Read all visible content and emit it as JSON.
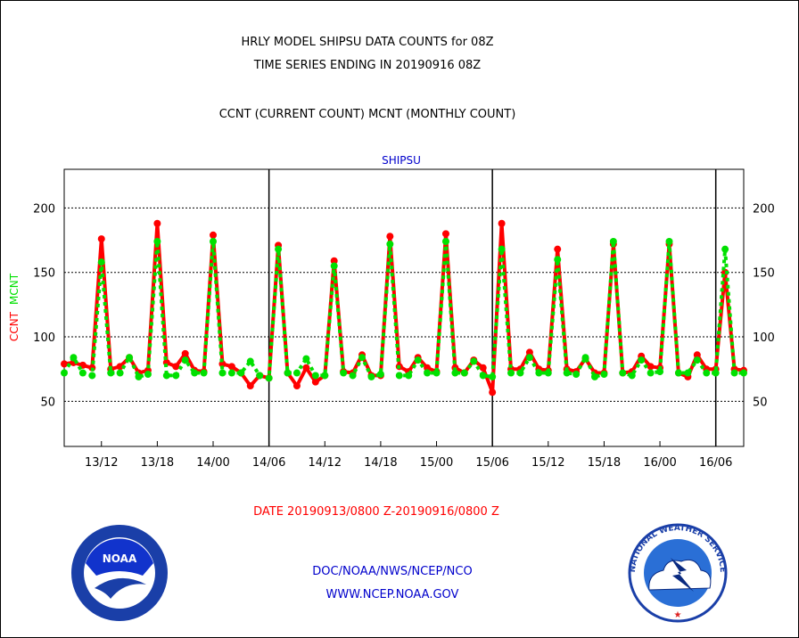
{
  "header": {
    "title_line1": "HRLY MODEL SHIPSU DATA COUNTS for 08Z",
    "title_line2": "TIME SERIES ENDING IN 20190916 08Z",
    "subtitle": "CCNT (CURRENT COUNT) MCNT (MONTHLY COUNT)"
  },
  "footer": {
    "date_range": "DATE 20190913/0800 Z-20190916/0800 Z",
    "org_line": "DOC/NOAA/NWS/NCEP/NCO",
    "url_line": "WWW.NCEP.NOAA.GOV"
  },
  "logos": {
    "left": "NOAA",
    "right": "NATIONAL WEATHER SERVICE"
  },
  "colors": {
    "ccnt": "#ff0000",
    "mcnt": "#00e000",
    "text_blue": "#0000cc",
    "grid": "#000000"
  },
  "chart_data": {
    "type": "line",
    "title": "SHIPSU",
    "ylabel_parts": [
      "CCNT",
      "MCNT"
    ],
    "ylim": [
      15,
      230
    ],
    "yticks": [
      50,
      100,
      150,
      200
    ],
    "grid": true,
    "x_start": "20190913/0800",
    "x_step_hours": 1,
    "x_tick_labels": [
      "13/12",
      "13/18",
      "14/00",
      "14/06",
      "14/12",
      "14/18",
      "15/00",
      "15/06",
      "15/12",
      "15/18",
      "16/00",
      "16/06"
    ],
    "x_tick_hours": [
      4,
      10,
      16,
      22,
      28,
      34,
      40,
      46,
      52,
      58,
      64,
      70
    ],
    "day_boundary_hours": [
      22,
      46,
      70
    ],
    "series": [
      {
        "name": "CCNT",
        "color": "#ff0000",
        "values": [
          79,
          80,
          78,
          76,
          176,
          75,
          77,
          84,
          72,
          74,
          188,
          80,
          77,
          87,
          74,
          73,
          179,
          79,
          77,
          72,
          62,
          70,
          68,
          171,
          72,
          62,
          76,
          65,
          70,
          159,
          73,
          72,
          86,
          70,
          70,
          178,
          77,
          73,
          84,
          76,
          73,
          180,
          76,
          72,
          82,
          76,
          57,
          188,
          75,
          75,
          88,
          75,
          74,
          168,
          75,
          73,
          83,
          72,
          72,
          172,
          72,
          73,
          85,
          77,
          76,
          172,
          72,
          69,
          86,
          75,
          75,
          150,
          75,
          74
        ]
      },
      {
        "name": "MCNT",
        "color": "#00e000",
        "values": [
          72,
          84,
          72,
          70,
          158,
          72,
          72,
          84,
          69,
          71,
          174,
          70,
          70,
          82,
          72,
          72,
          174,
          72,
          72,
          72,
          81,
          70,
          68,
          168,
          72,
          72,
          83,
          70,
          70,
          155,
          72,
          70,
          84,
          69,
          71,
          172,
          70,
          70,
          82,
          72,
          72,
          174,
          72,
          72,
          81,
          70,
          69,
          168,
          72,
          72,
          84,
          72,
          72,
          160,
          72,
          71,
          84,
          69,
          71,
          174,
          72,
          70,
          82,
          72,
          73,
          174,
          72,
          72,
          82,
          72,
          72,
          168,
          72,
          72
        ]
      }
    ]
  }
}
